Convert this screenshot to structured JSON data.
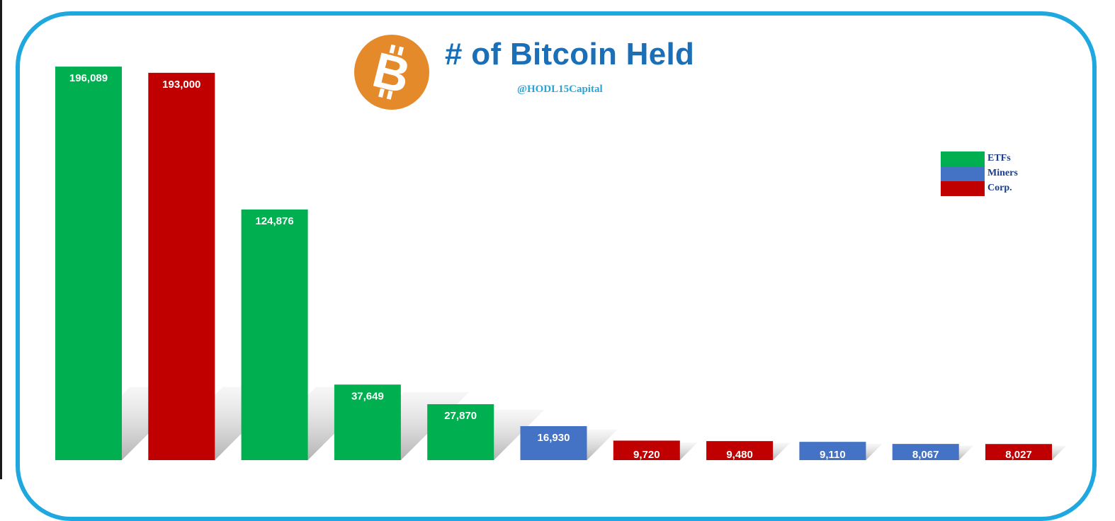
{
  "chart_data": {
    "type": "bar",
    "title": "# of Bitcoin Held",
    "subtitle": "@HODL15Capital",
    "xlabel": "",
    "ylabel": "",
    "ylim": [
      0,
      200000
    ],
    "grid": false,
    "legend_position": "top-right",
    "legend": [
      {
        "name": "ETFs",
        "color": "#00b050"
      },
      {
        "name": "Miners",
        "color": "#4472c4"
      },
      {
        "name": "Corp.",
        "color": "#c00000"
      }
    ],
    "values": [
      196089,
      193000,
      124876,
      37649,
      27870,
      16930,
      9720,
      9480,
      9110,
      8067,
      8027
    ],
    "value_labels": [
      "196,089",
      "193,000",
      "124,876",
      "37,649",
      "27,870",
      "16,930",
      "9,720",
      "9,480",
      "9,110",
      "8,067",
      "8,027"
    ],
    "bar_groups": [
      "ETFs",
      "Corp.",
      "ETFs",
      "ETFs",
      "ETFs",
      "Miners",
      "Corp.",
      "Corp.",
      "Miners",
      "Miners",
      "Corp."
    ]
  },
  "colors": {
    "frame": "#1fa8e0",
    "title": "#1b6fb7",
    "subtitle": "#2aa3d9",
    "logo_orange": "#e58a2b"
  },
  "logo": {
    "icon": "bitcoin-logo-icon",
    "glyph": "B"
  }
}
